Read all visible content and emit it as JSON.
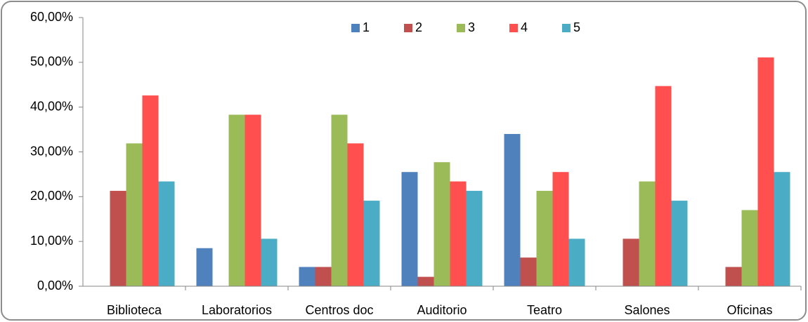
{
  "chart_data": {
    "type": "bar",
    "categories": [
      "Biblioteca",
      "Laboratorios",
      "Centros doc",
      "Auditorio",
      "Teatro",
      "Salones",
      "Oficinas"
    ],
    "series": [
      {
        "name": "1",
        "color": "#4f81bd",
        "values": [
          0,
          8.5,
          4.3,
          25.5,
          34.0,
          0,
          0
        ]
      },
      {
        "name": "2",
        "color": "#c0504d",
        "values": [
          21.3,
          0,
          4.3,
          2.1,
          6.4,
          10.6,
          4.3
        ]
      },
      {
        "name": "3",
        "color": "#9bbb59",
        "values": [
          31.9,
          38.3,
          38.3,
          27.7,
          21.3,
          23.4,
          17.0
        ]
      },
      {
        "name": "4",
        "color": "#ff4f4f",
        "values": [
          42.6,
          38.3,
          31.9,
          23.4,
          25.5,
          44.7,
          51.1
        ]
      },
      {
        "name": "5",
        "color": "#4bacc6",
        "values": [
          23.4,
          10.6,
          19.1,
          21.3,
          10.6,
          19.1,
          25.5
        ]
      }
    ],
    "ylim": [
      0,
      60
    ],
    "yticks": [
      {
        "value": 0,
        "label": "0,00%"
      },
      {
        "value": 10,
        "label": "10,00%"
      },
      {
        "value": 20,
        "label": "20,00%"
      },
      {
        "value": 30,
        "label": "30,00%"
      },
      {
        "value": 40,
        "label": "40,00%"
      },
      {
        "value": 50,
        "label": "50,00%"
      },
      {
        "value": 60,
        "label": "60,00%"
      }
    ],
    "legend": "top"
  }
}
